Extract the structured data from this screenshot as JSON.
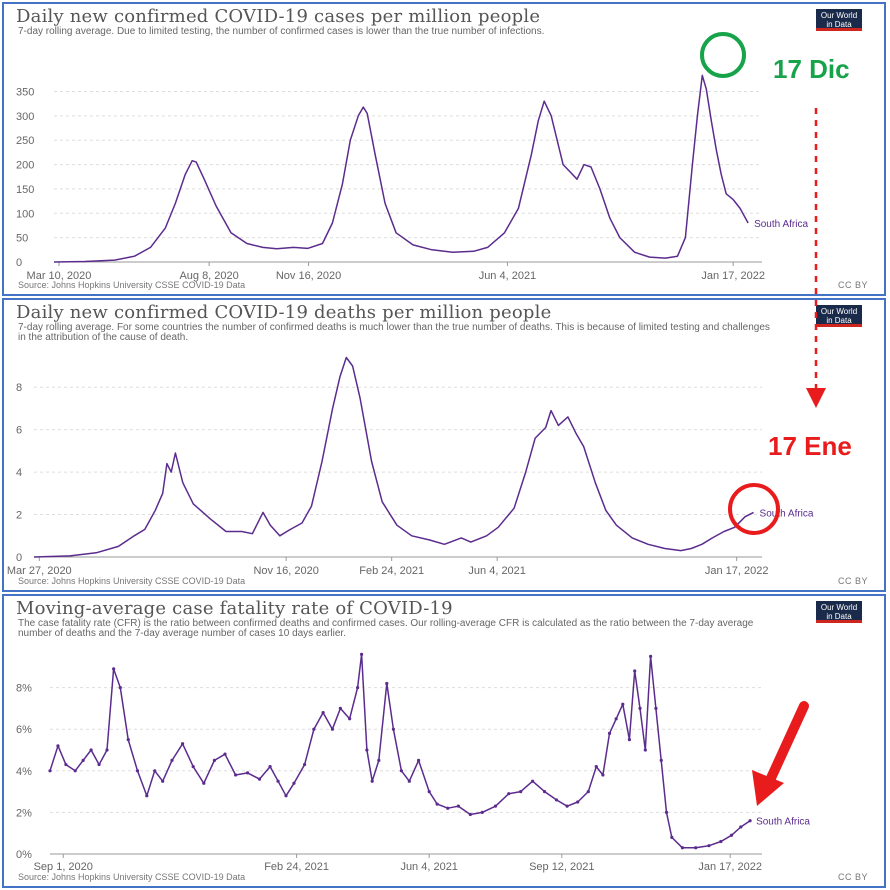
{
  "colors": {
    "line": "#5b2c8e",
    "grid": "#dddddd",
    "axis": "#666666",
    "green": "#17a34a",
    "red": "#e81c1c"
  },
  "panels": [
    {
      "title": "Daily new confirmed COVID-19 cases per million people",
      "subtitle": "7-day rolling average. Due to limited testing, the number of confirmed cases is lower than the true number of infections.",
      "logo": [
        "Our World",
        "in Data"
      ],
      "source": "Source: Johns Hopkins University CSSE COVID-19 Data",
      "license": "CC BY"
    },
    {
      "title": "Daily new confirmed COVID-19 deaths per million people",
      "subtitle": "7-day rolling average. For some countries the number of confirmed deaths is much lower than the true number of deaths. This is because of limited testing and challenges in the attribution of the cause of death.",
      "logo": [
        "Our World",
        "in Data"
      ],
      "source": "Source: Johns Hopkins University CSSE COVID-19 Data",
      "license": "CC BY"
    },
    {
      "title": "Moving-average case fatality rate of COVID-19",
      "subtitle": "The case fatality rate (CFR) is the ratio between confirmed deaths and confirmed cases. Our rolling-average CFR is calculated as the ratio between the 7-day average number of deaths and the 7-day average number of cases 10 days earlier.",
      "logo": [
        "Our World",
        "in Data"
      ],
      "source": "Source: Johns Hopkins University CSSE COVID-19 Data",
      "license": "CC BY"
    }
  ],
  "annotations": {
    "dec": "17 Dic",
    "jan": "17 Ene"
  },
  "chart_data": [
    {
      "type": "line",
      "title": "Daily new confirmed COVID-19 cases per million people",
      "xlabel": "",
      "ylabel": "",
      "xlim": [
        "2020-03-05",
        "2022-02-15"
      ],
      "ylim": [
        0,
        390
      ],
      "yticks": [
        0,
        50,
        100,
        150,
        200,
        250,
        300,
        350
      ],
      "ytick_labels": [
        "0",
        "50",
        "100",
        "150",
        "200",
        "250",
        "300",
        "350"
      ],
      "xticks": [
        "2020-03-10",
        "2020-08-08",
        "2020-11-16",
        "2021-06-04",
        "2022-01-17"
      ],
      "xtick_labels": [
        "Mar 10, 2020",
        "Aug 8, 2020",
        "Nov 16, 2020",
        "Jun 4, 2021",
        "Jan 17, 2022"
      ],
      "grid": true,
      "series": [
        {
          "name": "South Africa",
          "points": [
            [
              "2020-03-05",
              0
            ],
            [
              "2020-04-05",
              1
            ],
            [
              "2020-05-05",
              4
            ],
            [
              "2020-05-25",
              12
            ],
            [
              "2020-06-10",
              30
            ],
            [
              "2020-06-25",
              70
            ],
            [
              "2020-07-05",
              120
            ],
            [
              "2020-07-15",
              180
            ],
            [
              "2020-07-22",
              208
            ],
            [
              "2020-07-26",
              205
            ],
            [
              "2020-08-03",
              170
            ],
            [
              "2020-08-15",
              115
            ],
            [
              "2020-08-30",
              60
            ],
            [
              "2020-09-15",
              38
            ],
            [
              "2020-10-01",
              30
            ],
            [
              "2020-10-15",
              27
            ],
            [
              "2020-11-01",
              30
            ],
            [
              "2020-11-15",
              28
            ],
            [
              "2020-11-30",
              38
            ],
            [
              "2020-12-10",
              80
            ],
            [
              "2020-12-20",
              160
            ],
            [
              "2020-12-28",
              250
            ],
            [
              "2021-01-05",
              300
            ],
            [
              "2021-01-10",
              318
            ],
            [
              "2021-01-14",
              305
            ],
            [
              "2021-01-22",
              220
            ],
            [
              "2021-02-01",
              120
            ],
            [
              "2021-02-12",
              60
            ],
            [
              "2021-03-01",
              35
            ],
            [
              "2021-03-20",
              25
            ],
            [
              "2021-04-10",
              20
            ],
            [
              "2021-05-01",
              22
            ],
            [
              "2021-05-15",
              30
            ],
            [
              "2021-06-01",
              60
            ],
            [
              "2021-06-15",
              110
            ],
            [
              "2021-06-28",
              220
            ],
            [
              "2021-07-05",
              290
            ],
            [
              "2021-07-11",
              330
            ],
            [
              "2021-07-18",
              300
            ],
            [
              "2021-07-30",
              200
            ],
            [
              "2021-08-06",
              185
            ],
            [
              "2021-08-13",
              170
            ],
            [
              "2021-08-20",
              200
            ],
            [
              "2021-08-27",
              195
            ],
            [
              "2021-09-05",
              150
            ],
            [
              "2021-09-15",
              90
            ],
            [
              "2021-09-25",
              50
            ],
            [
              "2021-10-10",
              20
            ],
            [
              "2021-10-25",
              10
            ],
            [
              "2021-11-10",
              8
            ],
            [
              "2021-11-22",
              12
            ],
            [
              "2021-11-30",
              50
            ],
            [
              "2021-12-07",
              200
            ],
            [
              "2021-12-12",
              300
            ],
            [
              "2021-12-17",
              383
            ],
            [
              "2021-12-21",
              355
            ],
            [
              "2021-12-26",
              290
            ],
            [
              "2021-12-31",
              230
            ],
            [
              "2022-01-05",
              180
            ],
            [
              "2022-01-10",
              140
            ],
            [
              "2022-01-17",
              128
            ],
            [
              "2022-01-24",
              110
            ],
            [
              "2022-02-01",
              80
            ]
          ],
          "end_label": "South Africa"
        }
      ]
    },
    {
      "type": "line",
      "title": "Daily new confirmed COVID-19 deaths per million people",
      "xlabel": "",
      "ylabel": "",
      "xlim": [
        "2020-03-22",
        "2022-02-10"
      ],
      "ylim": [
        0,
        9.8
      ],
      "yticks": [
        0,
        2,
        4,
        6,
        8
      ],
      "ytick_labels": [
        "0",
        "2",
        "4",
        "6",
        "8"
      ],
      "xticks": [
        "2020-03-27",
        "2020-11-16",
        "2021-02-24",
        "2021-06-04",
        "2022-01-17"
      ],
      "xtick_labels": [
        "Mar 27, 2020",
        "Nov 16, 2020",
        "Feb 24, 2021",
        "Jun 4, 2021",
        "Jan 17, 2022"
      ],
      "grid": true,
      "series": [
        {
          "name": "South Africa",
          "points": [
            [
              "2020-03-22",
              0
            ],
            [
              "2020-04-25",
              0.05
            ],
            [
              "2020-05-20",
              0.2
            ],
            [
              "2020-06-10",
              0.5
            ],
            [
              "2020-06-25",
              1.0
            ],
            [
              "2020-07-05",
              1.3
            ],
            [
              "2020-07-15",
              2.2
            ],
            [
              "2020-07-22",
              3.0
            ],
            [
              "2020-07-26",
              4.4
            ],
            [
              "2020-07-30",
              4.0
            ],
            [
              "2020-08-03",
              4.9
            ],
            [
              "2020-08-10",
              3.5
            ],
            [
              "2020-08-20",
              2.5
            ],
            [
              "2020-09-05",
              1.8
            ],
            [
              "2020-09-20",
              1.2
            ],
            [
              "2020-10-05",
              1.2
            ],
            [
              "2020-10-15",
              1.1
            ],
            [
              "2020-10-25",
              2.1
            ],
            [
              "2020-11-01",
              1.5
            ],
            [
              "2020-11-10",
              1.0
            ],
            [
              "2020-11-20",
              1.3
            ],
            [
              "2020-12-01",
              1.6
            ],
            [
              "2020-12-10",
              2.4
            ],
            [
              "2020-12-20",
              4.5
            ],
            [
              "2020-12-30",
              7.0
            ],
            [
              "2021-01-06",
              8.5
            ],
            [
              "2021-01-12",
              9.4
            ],
            [
              "2021-01-18",
              9.0
            ],
            [
              "2021-01-25",
              7.5
            ],
            [
              "2021-02-05",
              4.5
            ],
            [
              "2021-02-15",
              2.6
            ],
            [
              "2021-03-01",
              1.5
            ],
            [
              "2021-03-15",
              1.0
            ],
            [
              "2021-04-01",
              0.8
            ],
            [
              "2021-04-15",
              0.6
            ],
            [
              "2021-05-01",
              0.9
            ],
            [
              "2021-05-10",
              0.7
            ],
            [
              "2021-05-25",
              1.0
            ],
            [
              "2021-06-05",
              1.4
            ],
            [
              "2021-06-20",
              2.3
            ],
            [
              "2021-07-01",
              4.0
            ],
            [
              "2021-07-10",
              5.6
            ],
            [
              "2021-07-20",
              6.1
            ],
            [
              "2021-07-25",
              6.9
            ],
            [
              "2021-08-01",
              6.2
            ],
            [
              "2021-08-10",
              6.6
            ],
            [
              "2021-08-18",
              5.8
            ],
            [
              "2021-08-25",
              5.2
            ],
            [
              "2021-09-05",
              3.5
            ],
            [
              "2021-09-15",
              2.2
            ],
            [
              "2021-09-25",
              1.5
            ],
            [
              "2021-10-10",
              0.9
            ],
            [
              "2021-10-25",
              0.6
            ],
            [
              "2021-11-10",
              0.4
            ],
            [
              "2021-11-25",
              0.3
            ],
            [
              "2021-12-05",
              0.4
            ],
            [
              "2021-12-15",
              0.6
            ],
            [
              "2021-12-25",
              0.9
            ],
            [
              "2022-01-05",
              1.2
            ],
            [
              "2022-01-15",
              1.4
            ],
            [
              "2022-01-25",
              1.9
            ],
            [
              "2022-02-02",
              2.1
            ]
          ],
          "end_label": "South Africa"
        }
      ]
    },
    {
      "type": "line",
      "title": "Moving-average case fatality rate of COVID-19",
      "xlabel": "",
      "ylabel": "",
      "xlim": [
        "2020-08-22",
        "2022-02-10"
      ],
      "ylim": [
        0,
        10
      ],
      "yticks": [
        0,
        2,
        4,
        6,
        8
      ],
      "ytick_labels": [
        "0%",
        "2%",
        "4%",
        "6%",
        "8%"
      ],
      "xticks": [
        "2020-09-01",
        "2021-02-24",
        "2021-06-04",
        "2021-09-12",
        "2022-01-17"
      ],
      "xtick_labels": [
        "Sep 1, 2020",
        "Feb 24, 2021",
        "Jun 4, 2021",
        "Sep 12, 2021",
        "Jan 17, 2022"
      ],
      "grid": true,
      "series": [
        {
          "name": "South Africa",
          "points": [
            [
              "2020-08-22",
              4.0
            ],
            [
              "2020-08-28",
              5.2
            ],
            [
              "2020-09-03",
              4.3
            ],
            [
              "2020-09-10",
              4.0
            ],
            [
              "2020-09-16",
              4.5
            ],
            [
              "2020-09-22",
              5.0
            ],
            [
              "2020-09-28",
              4.3
            ],
            [
              "2020-10-04",
              5.0
            ],
            [
              "2020-10-09",
              8.9
            ],
            [
              "2020-10-14",
              8.0
            ],
            [
              "2020-10-20",
              5.5
            ],
            [
              "2020-10-27",
              4.0
            ],
            [
              "2020-11-03",
              2.8
            ],
            [
              "2020-11-09",
              4.0
            ],
            [
              "2020-11-15",
              3.5
            ],
            [
              "2020-11-22",
              4.5
            ],
            [
              "2020-11-30",
              5.3
            ],
            [
              "2020-12-08",
              4.2
            ],
            [
              "2020-12-16",
              3.4
            ],
            [
              "2020-12-24",
              4.5
            ],
            [
              "2021-01-01",
              4.8
            ],
            [
              "2021-01-09",
              3.8
            ],
            [
              "2021-01-18",
              3.9
            ],
            [
              "2021-01-27",
              3.6
            ],
            [
              "2021-02-04",
              4.2
            ],
            [
              "2021-02-10",
              3.5
            ],
            [
              "2021-02-16",
              2.8
            ],
            [
              "2021-02-22",
              3.4
            ],
            [
              "2021-03-02",
              4.3
            ],
            [
              "2021-03-09",
              6.0
            ],
            [
              "2021-03-16",
              6.8
            ],
            [
              "2021-03-23",
              6.0
            ],
            [
              "2021-03-29",
              7.0
            ],
            [
              "2021-04-05",
              6.5
            ],
            [
              "2021-04-11",
              8.0
            ],
            [
              "2021-04-14",
              9.6
            ],
            [
              "2021-04-18",
              5.0
            ],
            [
              "2021-04-22",
              3.5
            ],
            [
              "2021-04-27",
              4.5
            ],
            [
              "2021-05-03",
              8.2
            ],
            [
              "2021-05-08",
              6.0
            ],
            [
              "2021-05-14",
              4.0
            ],
            [
              "2021-05-20",
              3.5
            ],
            [
              "2021-05-27",
              4.5
            ],
            [
              "2021-06-04",
              3.0
            ],
            [
              "2021-06-10",
              2.4
            ],
            [
              "2021-06-18",
              2.2
            ],
            [
              "2021-06-26",
              2.3
            ],
            [
              "2021-07-05",
              1.9
            ],
            [
              "2021-07-14",
              2.0
            ],
            [
              "2021-07-24",
              2.3
            ],
            [
              "2021-08-03",
              2.9
            ],
            [
              "2021-08-12",
              3.0
            ],
            [
              "2021-08-21",
              3.5
            ],
            [
              "2021-08-30",
              3.0
            ],
            [
              "2021-09-08",
              2.6
            ],
            [
              "2021-09-16",
              2.3
            ],
            [
              "2021-09-24",
              2.5
            ],
            [
              "2021-10-02",
              3.0
            ],
            [
              "2021-10-08",
              4.2
            ],
            [
              "2021-10-13",
              3.8
            ],
            [
              "2021-10-18",
              5.8
            ],
            [
              "2021-10-23",
              6.5
            ],
            [
              "2021-10-28",
              7.2
            ],
            [
              "2021-11-02",
              5.5
            ],
            [
              "2021-11-06",
              8.8
            ],
            [
              "2021-11-10",
              7.0
            ],
            [
              "2021-11-14",
              5.0
            ],
            [
              "2021-11-18",
              9.5
            ],
            [
              "2021-11-22",
              7.0
            ],
            [
              "2021-11-26",
              4.5
            ],
            [
              "2021-11-30",
              2.0
            ],
            [
              "2021-12-04",
              0.8
            ],
            [
              "2021-12-12",
              0.3
            ],
            [
              "2021-12-22",
              0.3
            ],
            [
              "2022-01-01",
              0.4
            ],
            [
              "2022-01-10",
              0.6
            ],
            [
              "2022-01-18",
              0.9
            ],
            [
              "2022-01-25",
              1.3
            ],
            [
              "2022-02-01",
              1.6
            ]
          ],
          "end_label": "South Africa"
        }
      ]
    }
  ]
}
